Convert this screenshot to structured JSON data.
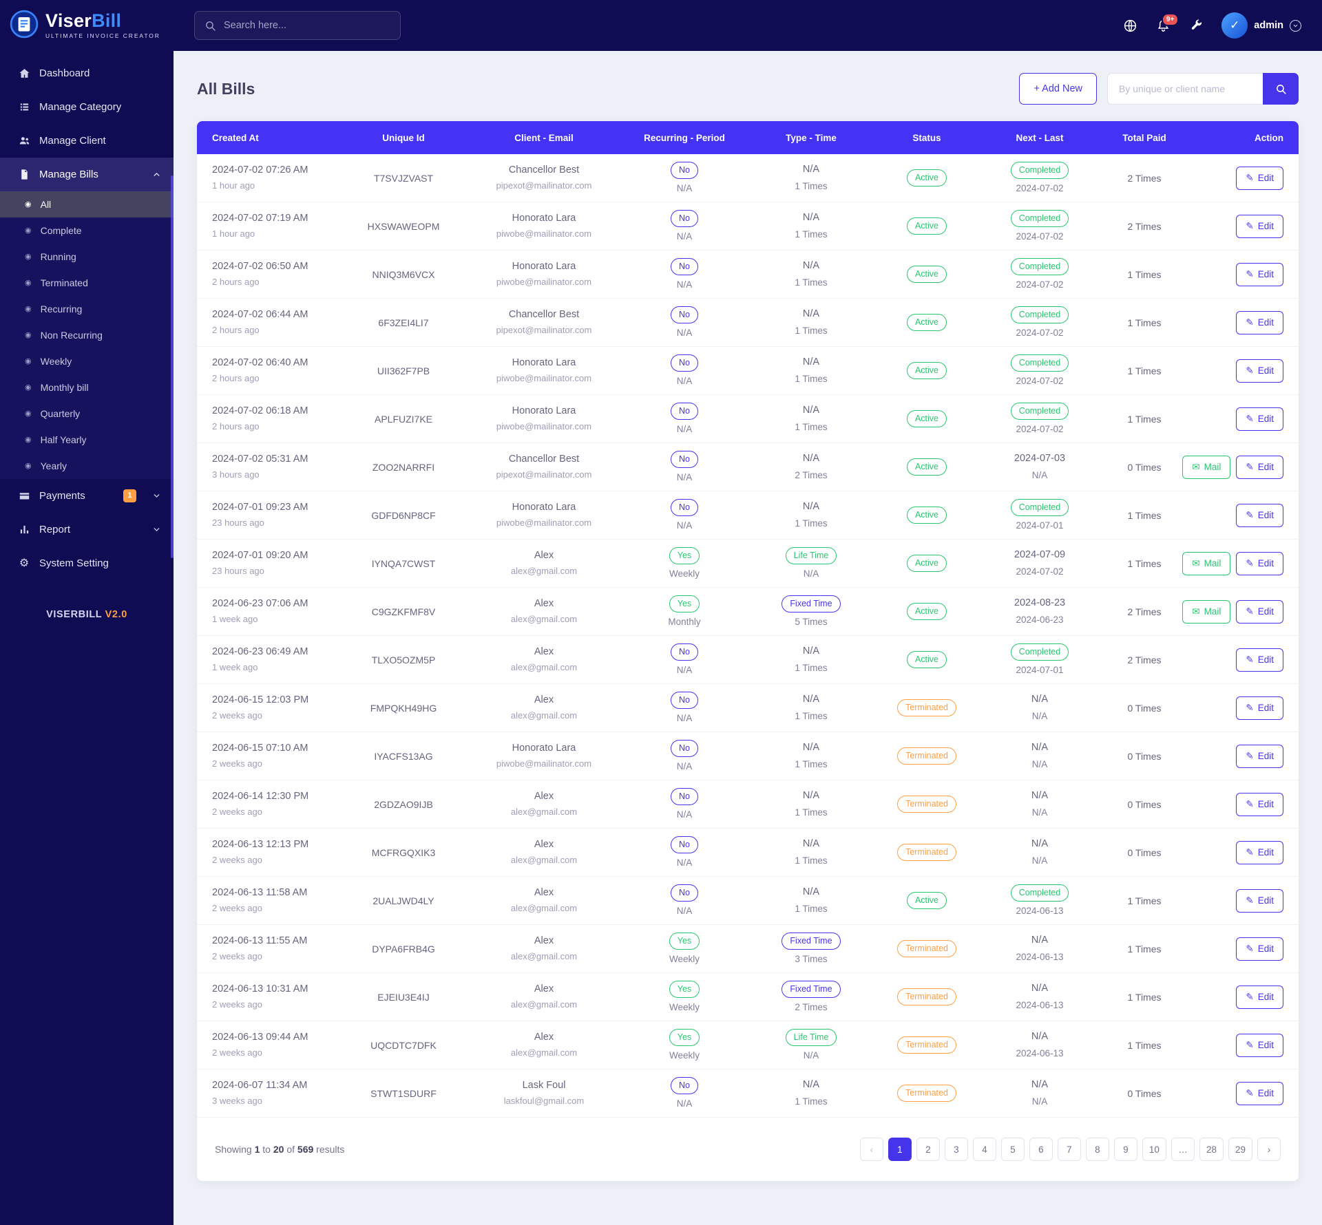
{
  "brand": {
    "name_a": "Viser",
    "name_b": "Bill",
    "tagline": "ULTIMATE INVOICE CREATOR",
    "version_prefix": "VISERBILL",
    "version": "V2.0"
  },
  "topbar": {
    "search_placeholder": "Search here...",
    "notification_badge": "9+",
    "username": "admin"
  },
  "colors": {
    "accent": "#4634eb",
    "table_header": "#4432f5",
    "navy": "#100c53",
    "green": "#28c76f",
    "orange": "#ff9f43",
    "notification_red": "#ea5455"
  },
  "sidebar": {
    "menu": [
      {
        "id": "dashboard",
        "label": "Dashboard",
        "icon": "home-icon"
      },
      {
        "id": "manage-category",
        "label": "Manage Category",
        "icon": "category-icon"
      },
      {
        "id": "manage-client",
        "label": "Manage Client",
        "icon": "users-icon"
      },
      {
        "id": "manage-bills",
        "label": "Manage Bills",
        "icon": "bills-icon",
        "expanded": true,
        "chevron": "up",
        "submenu_key": "bills_submenu"
      },
      {
        "id": "payments",
        "label": "Payments",
        "icon": "payments-icon",
        "badge": "1",
        "chevron": "down"
      },
      {
        "id": "report",
        "label": "Report",
        "icon": "report-icon",
        "chevron": "down"
      },
      {
        "id": "system-setting",
        "label": "System Setting",
        "icon": "gear-icon"
      }
    ],
    "bills_submenu": [
      {
        "id": "all",
        "label": "All",
        "active": true
      },
      {
        "id": "complete",
        "label": "Complete"
      },
      {
        "id": "running",
        "label": "Running"
      },
      {
        "id": "terminated",
        "label": "Terminated"
      },
      {
        "id": "recurring",
        "label": "Recurring"
      },
      {
        "id": "non-recurring",
        "label": "Non Recurring"
      },
      {
        "id": "weekly",
        "label": "Weekly"
      },
      {
        "id": "monthly-bill",
        "label": "Monthly bill"
      },
      {
        "id": "quarterly",
        "label": "Quarterly"
      },
      {
        "id": "half-yearly",
        "label": "Half Yearly"
      },
      {
        "id": "yearly",
        "label": "Yearly"
      }
    ]
  },
  "page": {
    "title": "All Bills",
    "add_new": "+ Add New",
    "filter_placeholder": "By unique or client name"
  },
  "table": {
    "edit_label": "Edit",
    "mail_label": "Mail",
    "columns": [
      "Created At",
      "Unique Id",
      "Client - Email",
      "Recurring - Period",
      "Type - Time",
      "Status",
      "Next - Last",
      "Total Paid",
      "Action"
    ],
    "rows": [
      {
        "created_at": "2024-07-02 07:26 AM",
        "created_ago": "1 hour ago",
        "unique_id": "T7SVJZVAST",
        "client": "Chancellor Best",
        "email": "pipexot@mailinator.com",
        "recurring": "No",
        "period": "N/A",
        "type": "N/A",
        "type_pill": null,
        "time": "1 Times",
        "status": "Active",
        "next": "Completed",
        "next_pill": true,
        "last": "2024-07-02",
        "total_paid": "2 Times",
        "mail": false
      },
      {
        "created_at": "2024-07-02 07:19 AM",
        "created_ago": "1 hour ago",
        "unique_id": "HXSWAWEOPM",
        "client": "Honorato Lara",
        "email": "piwobe@mailinator.com",
        "recurring": "No",
        "period": "N/A",
        "type": "N/A",
        "type_pill": null,
        "time": "1 Times",
        "status": "Active",
        "next": "Completed",
        "next_pill": true,
        "last": "2024-07-02",
        "total_paid": "2 Times",
        "mail": false
      },
      {
        "created_at": "2024-07-02 06:50 AM",
        "created_ago": "2 hours ago",
        "unique_id": "NNIQ3M6VCX",
        "client": "Honorato Lara",
        "email": "piwobe@mailinator.com",
        "recurring": "No",
        "period": "N/A",
        "type": "N/A",
        "type_pill": null,
        "time": "1 Times",
        "status": "Active",
        "next": "Completed",
        "next_pill": true,
        "last": "2024-07-02",
        "total_paid": "1 Times",
        "mail": false
      },
      {
        "created_at": "2024-07-02 06:44 AM",
        "created_ago": "2 hours ago",
        "unique_id": "6F3ZEI4LI7",
        "client": "Chancellor Best",
        "email": "pipexot@mailinator.com",
        "recurring": "No",
        "period": "N/A",
        "type": "N/A",
        "type_pill": null,
        "time": "1 Times",
        "status": "Active",
        "next": "Completed",
        "next_pill": true,
        "last": "2024-07-02",
        "total_paid": "1 Times",
        "mail": false
      },
      {
        "created_at": "2024-07-02 06:40 AM",
        "created_ago": "2 hours ago",
        "unique_id": "UII362F7PB",
        "client": "Honorato Lara",
        "email": "piwobe@mailinator.com",
        "recurring": "No",
        "period": "N/A",
        "type": "N/A",
        "type_pill": null,
        "time": "1 Times",
        "status": "Active",
        "next": "Completed",
        "next_pill": true,
        "last": "2024-07-02",
        "total_paid": "1 Times",
        "mail": false
      },
      {
        "created_at": "2024-07-02 06:18 AM",
        "created_ago": "2 hours ago",
        "unique_id": "APLFUZI7KE",
        "client": "Honorato Lara",
        "email": "piwobe@mailinator.com",
        "recurring": "No",
        "period": "N/A",
        "type": "N/A",
        "type_pill": null,
        "time": "1 Times",
        "status": "Active",
        "next": "Completed",
        "next_pill": true,
        "last": "2024-07-02",
        "total_paid": "1 Times",
        "mail": false
      },
      {
        "created_at": "2024-07-02 05:31 AM",
        "created_ago": "3 hours ago",
        "unique_id": "ZOO2NARRFI",
        "client": "Chancellor Best",
        "email": "pipexot@mailinator.com",
        "recurring": "No",
        "period": "N/A",
        "type": "N/A",
        "type_pill": null,
        "time": "2 Times",
        "status": "Active",
        "next": "2024-07-03",
        "next_pill": false,
        "last": "N/A",
        "total_paid": "0 Times",
        "mail": true
      },
      {
        "created_at": "2024-07-01 09:23 AM",
        "created_ago": "23 hours ago",
        "unique_id": "GDFD6NP8CF",
        "client": "Honorato Lara",
        "email": "piwobe@mailinator.com",
        "recurring": "No",
        "period": "N/A",
        "type": "N/A",
        "type_pill": null,
        "time": "1 Times",
        "status": "Active",
        "next": "Completed",
        "next_pill": true,
        "last": "2024-07-01",
        "total_paid": "1 Times",
        "mail": false
      },
      {
        "created_at": "2024-07-01 09:20 AM",
        "created_ago": "23 hours ago",
        "unique_id": "IYNQA7CWST",
        "client": "Alex",
        "email": "alex@gmail.com",
        "recurring": "Yes",
        "period": "Weekly",
        "type": "Life Time",
        "type_pill": "green",
        "time": "N/A",
        "status": "Active",
        "next": "2024-07-09",
        "next_pill": false,
        "last": "2024-07-02",
        "total_paid": "1 Times",
        "mail": true
      },
      {
        "created_at": "2024-06-23 07:06 AM",
        "created_ago": "1 week ago",
        "unique_id": "C9GZKFMF8V",
        "client": "Alex",
        "email": "alex@gmail.com",
        "recurring": "Yes",
        "period": "Monthly",
        "type": "Fixed Time",
        "type_pill": "indigo",
        "time": "5 Times",
        "status": "Active",
        "next": "2024-08-23",
        "next_pill": false,
        "last": "2024-06-23",
        "total_paid": "2 Times",
        "mail": true
      },
      {
        "created_at": "2024-06-23 06:49 AM",
        "created_ago": "1 week ago",
        "unique_id": "TLXO5OZM5P",
        "client": "Alex",
        "email": "alex@gmail.com",
        "recurring": "No",
        "period": "N/A",
        "type": "N/A",
        "type_pill": null,
        "time": "1 Times",
        "status": "Active",
        "next": "Completed",
        "next_pill": true,
        "last": "2024-07-01",
        "total_paid": "2 Times",
        "mail": false
      },
      {
        "created_at": "2024-06-15 12:03 PM",
        "created_ago": "2 weeks ago",
        "unique_id": "FMPQKH49HG",
        "client": "Alex",
        "email": "alex@gmail.com",
        "recurring": "No",
        "period": "N/A",
        "type": "N/A",
        "type_pill": null,
        "time": "1 Times",
        "status": "Terminated",
        "next": "N/A",
        "next_pill": false,
        "last": "N/A",
        "total_paid": "0 Times",
        "mail": false
      },
      {
        "created_at": "2024-06-15 07:10 AM",
        "created_ago": "2 weeks ago",
        "unique_id": "IYACFS13AG",
        "client": "Honorato Lara",
        "email": "piwobe@mailinator.com",
        "recurring": "No",
        "period": "N/A",
        "type": "N/A",
        "type_pill": null,
        "time": "1 Times",
        "status": "Terminated",
        "next": "N/A",
        "next_pill": false,
        "last": "N/A",
        "total_paid": "0 Times",
        "mail": false
      },
      {
        "created_at": "2024-06-14 12:30 PM",
        "created_ago": "2 weeks ago",
        "unique_id": "2GDZAO9IJB",
        "client": "Alex",
        "email": "alex@gmail.com",
        "recurring": "No",
        "period": "N/A",
        "type": "N/A",
        "type_pill": null,
        "time": "1 Times",
        "status": "Terminated",
        "next": "N/A",
        "next_pill": false,
        "last": "N/A",
        "total_paid": "0 Times",
        "mail": false
      },
      {
        "created_at": "2024-06-13 12:13 PM",
        "created_ago": "2 weeks ago",
        "unique_id": "MCFRGQXIK3",
        "client": "Alex",
        "email": "alex@gmail.com",
        "recurring": "No",
        "period": "N/A",
        "type": "N/A",
        "type_pill": null,
        "time": "1 Times",
        "status": "Terminated",
        "next": "N/A",
        "next_pill": false,
        "last": "N/A",
        "total_paid": "0 Times",
        "mail": false
      },
      {
        "created_at": "2024-06-13 11:58 AM",
        "created_ago": "2 weeks ago",
        "unique_id": "2UALJWD4LY",
        "client": "Alex",
        "email": "alex@gmail.com",
        "recurring": "No",
        "period": "N/A",
        "type": "N/A",
        "type_pill": null,
        "time": "1 Times",
        "status": "Active",
        "next": "Completed",
        "next_pill": true,
        "last": "2024-06-13",
        "total_paid": "1 Times",
        "mail": false
      },
      {
        "created_at": "2024-06-13 11:55 AM",
        "created_ago": "2 weeks ago",
        "unique_id": "DYPA6FRB4G",
        "client": "Alex",
        "email": "alex@gmail.com",
        "recurring": "Yes",
        "period": "Weekly",
        "type": "Fixed Time",
        "type_pill": "indigo",
        "time": "3 Times",
        "status": "Terminated",
        "next": "N/A",
        "next_pill": false,
        "last": "2024-06-13",
        "total_paid": "1 Times",
        "mail": false
      },
      {
        "created_at": "2024-06-13 10:31 AM",
        "created_ago": "2 weeks ago",
        "unique_id": "EJEIU3E4IJ",
        "client": "Alex",
        "email": "alex@gmail.com",
        "recurring": "Yes",
        "period": "Weekly",
        "type": "Fixed Time",
        "type_pill": "indigo",
        "time": "2 Times",
        "status": "Terminated",
        "next": "N/A",
        "next_pill": false,
        "last": "2024-06-13",
        "total_paid": "1 Times",
        "mail": false
      },
      {
        "created_at": "2024-06-13 09:44 AM",
        "created_ago": "2 weeks ago",
        "unique_id": "UQCDTC7DFK",
        "client": "Alex",
        "email": "alex@gmail.com",
        "recurring": "Yes",
        "period": "Weekly",
        "type": "Life Time",
        "type_pill": "green",
        "time": "N/A",
        "status": "Terminated",
        "next": "N/A",
        "next_pill": false,
        "last": "2024-06-13",
        "total_paid": "1 Times",
        "mail": false
      },
      {
        "created_at": "2024-06-07 11:34 AM",
        "created_ago": "3 weeks ago",
        "unique_id": "STWT1SDURF",
        "client": "Lask Foul",
        "email": "laskfoul@gmail.com",
        "recurring": "No",
        "period": "N/A",
        "type": "N/A",
        "type_pill": null,
        "time": "1 Times",
        "status": "Terminated",
        "next": "N/A",
        "next_pill": false,
        "last": "N/A",
        "total_paid": "0 Times",
        "mail": false
      }
    ]
  },
  "pagination": {
    "showing": "Showing",
    "from": "1",
    "to_word": "to",
    "to": "20",
    "of_word": "of",
    "total": "569",
    "results_word": "results",
    "pages": [
      {
        "label": "‹",
        "disabled": true
      },
      {
        "label": "1",
        "active": true
      },
      {
        "label": "2"
      },
      {
        "label": "3"
      },
      {
        "label": "4"
      },
      {
        "label": "5"
      },
      {
        "label": "6"
      },
      {
        "label": "7"
      },
      {
        "label": "8"
      },
      {
        "label": "9"
      },
      {
        "label": "10"
      },
      {
        "label": "…"
      },
      {
        "label": "28"
      },
      {
        "label": "29"
      },
      {
        "label": "›"
      }
    ]
  }
}
